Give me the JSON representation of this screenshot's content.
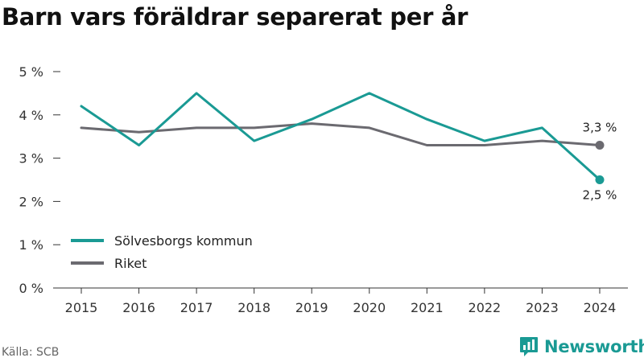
{
  "title": "Barn vars föräldrar separerat per år",
  "source": "Källa: SCB",
  "brand": {
    "name": "Newsworthy",
    "icon": "newsworthy-chart-bubble-icon",
    "color": "#1a9a94"
  },
  "chart_data": {
    "type": "line",
    "title": "Barn vars föräldrar separerat per år",
    "xlabel": "",
    "ylabel": "",
    "x": [
      "2015",
      "2016",
      "2017",
      "2018",
      "2019",
      "2020",
      "2021",
      "2022",
      "2023",
      "2024"
    ],
    "ylim": [
      0,
      5
    ],
    "yticks": [
      0,
      1,
      2,
      3,
      4,
      5
    ],
    "ytick_labels": [
      "0 %",
      "1 %",
      "2 %",
      "3 %",
      "4 %",
      "5 %"
    ],
    "grid": false,
    "legend_position": "bottom-left",
    "series": [
      {
        "name": "Sölvesborgs kommun",
        "color": "#1a9a94",
        "values": [
          4.2,
          3.3,
          4.5,
          3.4,
          3.9,
          4.5,
          3.9,
          3.4,
          3.7,
          2.5
        ],
        "end_label": "2,5 %"
      },
      {
        "name": "Riket",
        "color": "#6b6a70",
        "values": [
          3.7,
          3.6,
          3.7,
          3.7,
          3.8,
          3.7,
          3.3,
          3.3,
          3.4,
          3.3
        ],
        "end_label": "3,3 %"
      }
    ]
  }
}
